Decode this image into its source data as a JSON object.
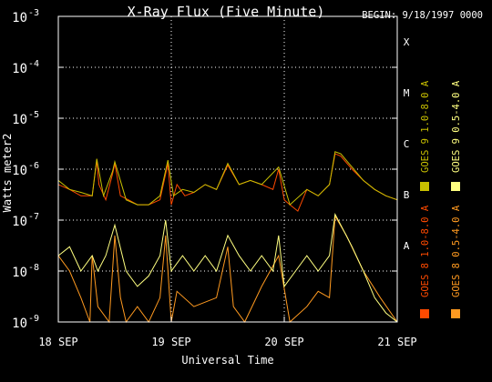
{
  "chart_data": {
    "type": "line",
    "title": "X-Ray Flux (Five Minute)",
    "begin_label": "BEGIN: 9/18/1997 0000",
    "xlabel": "Universal Time",
    "ylabel": "Watts meter2",
    "y_scale": "log",
    "ylim": [
      1e-09,
      0.001
    ],
    "x_unit": "days since 18 SEP 1997 00:00 UT",
    "xlim": [
      0,
      3
    ],
    "x_ticks": [
      {
        "x": 0,
        "label": "18 SEP"
      },
      {
        "x": 1,
        "label": "19 SEP"
      },
      {
        "x": 2,
        "label": "20 SEP"
      },
      {
        "x": 3,
        "label": "21 SEP"
      }
    ],
    "y_ticks": [
      {
        "exp": -3,
        "base": "10",
        "sup": "-3"
      },
      {
        "exp": -4,
        "base": "10",
        "sup": "-4"
      },
      {
        "exp": -5,
        "base": "10",
        "sup": "-5"
      },
      {
        "exp": -6,
        "base": "10",
        "sup": "-6"
      },
      {
        "exp": -7,
        "base": "10",
        "sup": "-7"
      },
      {
        "exp": -8,
        "base": "10",
        "sup": "-8"
      },
      {
        "exp": -9,
        "base": "10",
        "sup": "-9"
      }
    ],
    "flare_classes": [
      {
        "label": "X",
        "exp": -3.5
      },
      {
        "label": "M",
        "exp": -4.5
      },
      {
        "label": "C",
        "exp": -5.5
      },
      {
        "label": "B",
        "exp": -6.5
      },
      {
        "label": "A",
        "exp": -7.5
      }
    ],
    "grid": "dotted horizontal at each decade, dotted vertical at each day",
    "series": [
      {
        "name": "GOES 8 1.0-8.0 A",
        "color": "#ff4a00",
        "x": [
          0,
          0.1,
          0.2,
          0.3,
          0.34,
          0.36,
          0.42,
          0.48,
          0.5,
          0.55,
          0.62,
          0.7,
          0.8,
          0.9,
          0.97,
          1.0,
          1.05,
          1.12,
          1.2,
          1.3,
          1.4,
          1.5,
          1.6,
          1.7,
          1.8,
          1.9,
          1.95,
          2.0,
          2.05,
          2.12,
          2.2,
          2.3,
          2.4,
          2.45,
          2.5,
          2.6,
          2.7,
          2.8,
          2.9,
          3.0
        ],
        "y": [
          5e-07,
          4e-07,
          3e-07,
          3e-07,
          1.5e-06,
          5e-07,
          2.5e-07,
          8e-07,
          1.3e-06,
          3e-07,
          2.5e-07,
          2e-07,
          2e-07,
          2.5e-07,
          1.3e-06,
          2e-07,
          5e-07,
          3e-07,
          3.5e-07,
          5e-07,
          4e-07,
          1.2e-06,
          5e-07,
          6e-07,
          5e-07,
          4e-07,
          1e-06,
          2.5e-07,
          2e-07,
          1.5e-07,
          4e-07,
          3e-07,
          5e-07,
          2e-06,
          1.8e-06,
          1e-06,
          6e-07,
          4e-07,
          3e-07,
          2.5e-07
        ]
      },
      {
        "name": "GOES 8 0.5-4.0 A",
        "color": "#ff9a20",
        "x": [
          0,
          0.1,
          0.2,
          0.28,
          0.3,
          0.35,
          0.45,
          0.5,
          0.55,
          0.6,
          0.7,
          0.8,
          0.9,
          0.95,
          1.0,
          1.05,
          1.2,
          1.4,
          1.5,
          1.55,
          1.65,
          1.8,
          1.95,
          2.05,
          2.2,
          2.3,
          2.4,
          2.45,
          2.55,
          2.7,
          2.85,
          3.0
        ],
        "y": [
          2e-08,
          1e-08,
          3e-09,
          1e-09,
          2e-08,
          2e-09,
          1e-09,
          5e-08,
          3e-09,
          1e-09,
          2e-09,
          1e-09,
          3e-09,
          5e-08,
          1e-09,
          4e-09,
          2e-09,
          3e-09,
          3e-08,
          2e-09,
          1e-09,
          5e-09,
          2e-08,
          1e-09,
          2e-09,
          4e-09,
          3e-09,
          1.2e-07,
          5e-08,
          1e-08,
          3e-09,
          1e-09
        ]
      },
      {
        "name": "GOES 9 1.0-8.0 A",
        "color": "#c8c000",
        "x": [
          0,
          0.1,
          0.2,
          0.3,
          0.34,
          0.4,
          0.48,
          0.5,
          0.6,
          0.7,
          0.8,
          0.9,
          0.97,
          1.02,
          1.1,
          1.2,
          1.3,
          1.4,
          1.5,
          1.6,
          1.7,
          1.8,
          1.95,
          2.05,
          2.2,
          2.3,
          2.4,
          2.45,
          2.5,
          2.6,
          2.7,
          2.8,
          2.9,
          3.0
        ],
        "y": [
          6e-07,
          4e-07,
          3.5e-07,
          3e-07,
          1.6e-06,
          3e-07,
          9e-07,
          1.4e-06,
          2.5e-07,
          2e-07,
          2e-07,
          3e-07,
          1.5e-06,
          3e-07,
          4e-07,
          3.5e-07,
          5e-07,
          4e-07,
          1.3e-06,
          5e-07,
          6e-07,
          5e-07,
          1.1e-06,
          2e-07,
          4e-07,
          3e-07,
          5e-07,
          2.2e-06,
          2e-06,
          1.1e-06,
          6e-07,
          4e-07,
          3e-07,
          2.5e-07
        ]
      },
      {
        "name": "GOES 9 0.5-4.0 A",
        "color": "#ffff80",
        "x": [
          0,
          0.1,
          0.2,
          0.3,
          0.35,
          0.42,
          0.5,
          0.6,
          0.7,
          0.8,
          0.9,
          0.95,
          1.0,
          1.1,
          1.2,
          1.3,
          1.4,
          1.5,
          1.6,
          1.7,
          1.8,
          1.9,
          1.95,
          2.0,
          2.1,
          2.2,
          2.3,
          2.4,
          2.45,
          2.5,
          2.6,
          2.7,
          2.8,
          2.9,
          3.0
        ],
        "y": [
          2e-08,
          3e-08,
          1e-08,
          2e-08,
          1e-08,
          2e-08,
          8e-08,
          1e-08,
          5e-09,
          8e-09,
          2e-08,
          1e-07,
          1e-08,
          2e-08,
          1e-08,
          2e-08,
          1e-08,
          5e-08,
          2e-08,
          1e-08,
          2e-08,
          1e-08,
          5e-08,
          5e-09,
          1e-08,
          2e-08,
          1e-08,
          2e-08,
          1.3e-07,
          8e-08,
          3e-08,
          1e-08,
          3e-09,
          1.5e-09,
          1e-09
        ]
      }
    ]
  }
}
